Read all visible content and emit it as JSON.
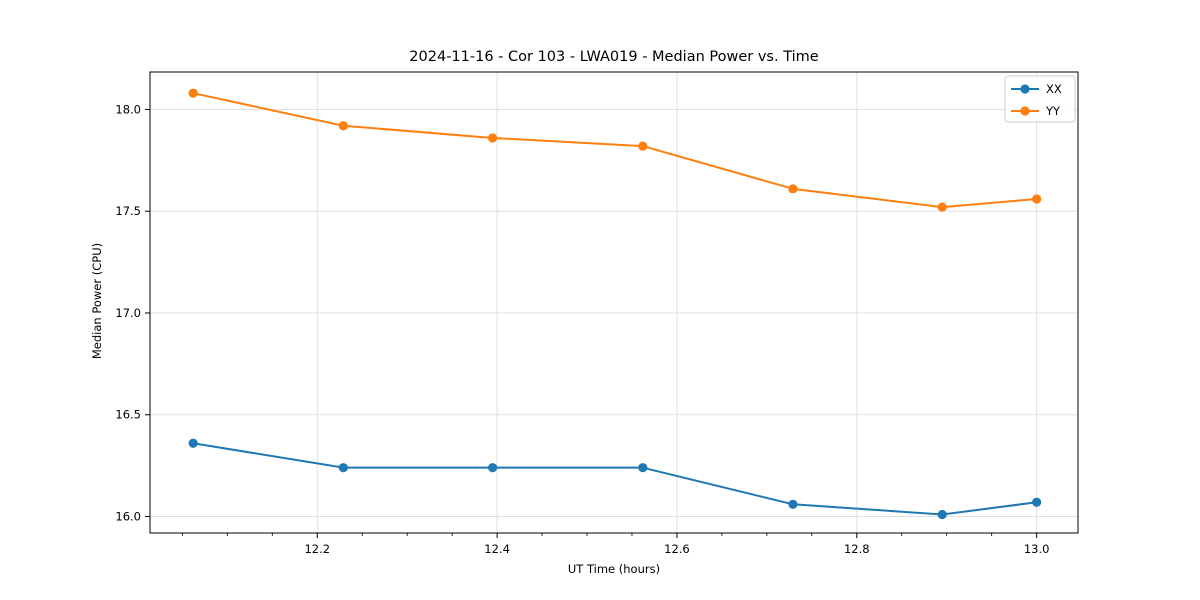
{
  "title": "2024-11-16 - Cor 103 - LWA019 - Median Power vs. Time",
  "colors": {
    "series_xx": "#1f77b4",
    "series_yy": "#ff7f0e",
    "grid": "#e0e0e0",
    "spine": "#000000",
    "legend_border": "#cccccc",
    "background": "#ffffff"
  },
  "chart_data": {
    "type": "line",
    "title": "2024-11-16 - Cor 103 - LWA019 - Median Power vs. Time",
    "xlabel": "UT Time (hours)",
    "ylabel": "Median Power (CPU)",
    "x": [
      12.062,
      12.229,
      12.395,
      12.562,
      12.729,
      12.895,
      13.0
    ],
    "series": [
      {
        "name": "XX",
        "color": "#1f77b4",
        "values": [
          16.36,
          16.24,
          16.24,
          16.24,
          16.06,
          16.01,
          16.07
        ]
      },
      {
        "name": "YY",
        "color": "#ff7f0e",
        "values": [
          18.08,
          17.92,
          17.86,
          17.82,
          17.61,
          17.52,
          17.56
        ]
      }
    ],
    "xlim": [
      12.014,
      13.046
    ],
    "ylim": [
      15.919,
      18.184
    ],
    "xticks": [
      12.2,
      12.4,
      12.6,
      12.8,
      13.0
    ],
    "yticks": [
      16.0,
      16.5,
      17.0,
      17.5,
      18.0
    ],
    "x_minor_step": 0.05,
    "grid": true,
    "legend": {
      "position": "upper right",
      "entries": [
        "XX",
        "YY"
      ]
    },
    "marker": "circle"
  }
}
